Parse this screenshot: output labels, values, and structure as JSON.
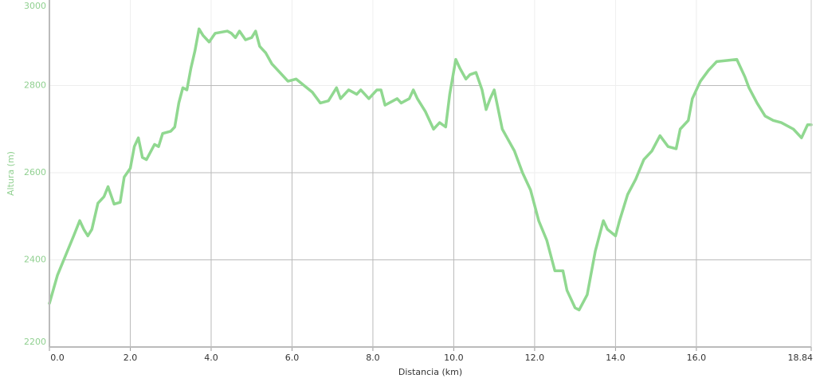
{
  "chart_data": {
    "type": "line",
    "y_label": "Altura (m)",
    "x_label": "Distancia (km)",
    "xlim": [
      0,
      18.84
    ],
    "ylim": [
      2200,
      3000
    ],
    "xticks": [
      {
        "value": 0,
        "label": "0.0"
      },
      {
        "value": 2,
        "label": "2.0"
      },
      {
        "value": 4,
        "label": "4.0"
      },
      {
        "value": 6,
        "label": "6.0"
      },
      {
        "value": 8,
        "label": "8.0"
      },
      {
        "value": 10,
        "label": "10.0"
      },
      {
        "value": 12,
        "label": "12.0"
      },
      {
        "value": 14,
        "label": "14.0"
      },
      {
        "value": 16,
        "label": "16.0"
      },
      18.84
    ],
    "yticks": [
      2200,
      2400,
      2600,
      2800,
      3000
    ],
    "grid": true,
    "series": [
      {
        "color": "#90d890",
        "x": [
          0,
          0.2,
          0.4,
          0.6,
          0.75,
          0.85,
          0.95,
          1.05,
          1.2,
          1.35,
          1.45,
          1.6,
          1.75,
          1.85,
          2.0,
          2.1,
          2.2,
          2.3,
          2.4,
          2.6,
          2.7,
          2.8,
          3.0,
          3.1,
          3.2,
          3.3,
          3.4,
          3.5,
          3.6,
          3.7,
          3.8,
          3.95,
          4.1,
          4.4,
          4.5,
          4.6,
          4.7,
          4.85,
          5.0,
          5.1,
          5.2,
          5.35,
          5.5,
          5.7,
          5.9,
          6.1,
          6.3,
          6.5,
          6.7,
          6.9,
          7.1,
          7.2,
          7.4,
          7.6,
          7.7,
          7.9,
          8.1,
          8.2,
          8.3,
          8.5,
          8.6,
          8.7,
          8.9,
          9.0,
          9.1,
          9.3,
          9.5,
          9.65,
          9.8,
          9.9,
          10.05,
          10.15,
          10.3,
          10.4,
          10.55,
          10.7,
          10.8,
          10.9,
          11.0,
          11.2,
          11.5,
          11.7,
          11.9,
          12.1,
          12.3,
          12.4,
          12.5,
          12.7,
          12.8,
          13.0,
          13.1,
          13.3,
          13.5,
          13.7,
          13.8,
          14.0,
          14.1,
          14.3,
          14.5,
          14.7,
          14.9,
          15.1,
          15.3,
          15.5,
          15.6,
          15.8,
          15.9,
          16.1,
          16.3,
          16.5,
          16.8,
          17.0,
          17.2,
          17.3,
          17.5,
          17.7,
          17.9,
          18.1,
          18.4,
          18.6,
          18.75,
          18.84
        ],
        "values": [
          2300,
          2365,
          2410,
          2455,
          2490,
          2470,
          2455,
          2470,
          2530,
          2545,
          2568,
          2528,
          2532,
          2590,
          2610,
          2660,
          2680,
          2635,
          2630,
          2665,
          2660,
          2690,
          2695,
          2705,
          2760,
          2795,
          2790,
          2840,
          2880,
          2930,
          2915,
          2900,
          2920,
          2925,
          2920,
          2910,
          2925,
          2905,
          2910,
          2925,
          2890,
          2875,
          2850,
          2830,
          2810,
          2815,
          2800,
          2785,
          2760,
          2765,
          2795,
          2770,
          2790,
          2780,
          2790,
          2770,
          2790,
          2790,
          2755,
          2765,
          2770,
          2760,
          2770,
          2790,
          2770,
          2740,
          2700,
          2715,
          2705,
          2780,
          2860,
          2840,
          2815,
          2825,
          2830,
          2790,
          2745,
          2770,
          2790,
          2700,
          2650,
          2600,
          2560,
          2490,
          2445,
          2410,
          2375,
          2375,
          2330,
          2290,
          2285,
          2320,
          2420,
          2490,
          2470,
          2455,
          2490,
          2550,
          2585,
          2630,
          2650,
          2685,
          2660,
          2655,
          2700,
          2720,
          2770,
          2810,
          2835,
          2855,
          2858,
          2860,
          2820,
          2795,
          2760,
          2730,
          2720,
          2715,
          2700,
          2680,
          2710,
          2710
        ]
      }
    ]
  }
}
